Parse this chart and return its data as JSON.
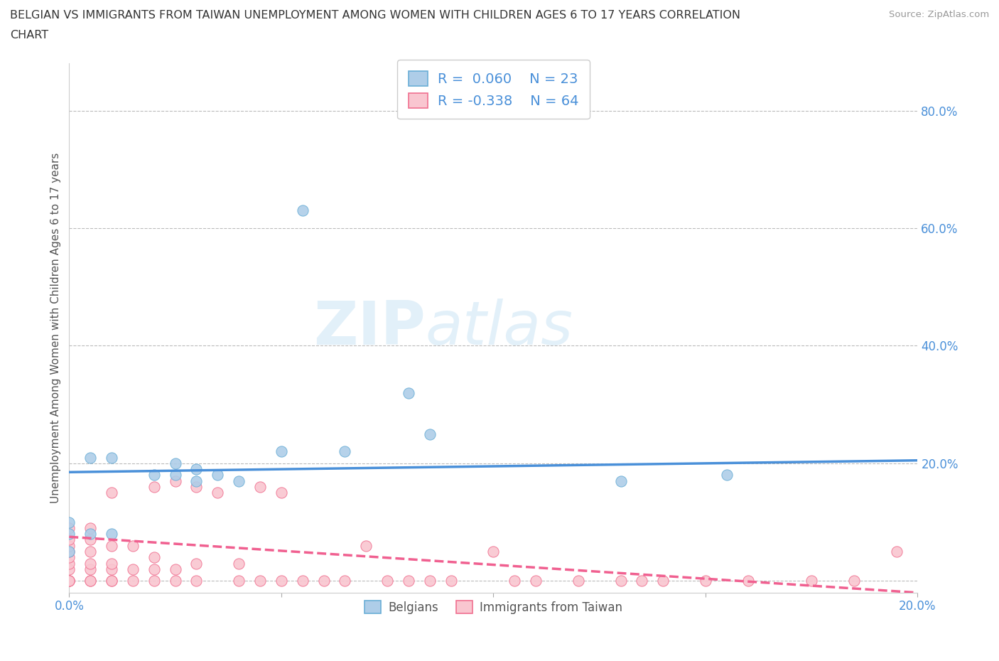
{
  "title_line1": "BELGIAN VS IMMIGRANTS FROM TAIWAN UNEMPLOYMENT AMONG WOMEN WITH CHILDREN AGES 6 TO 17 YEARS CORRELATION",
  "title_line2": "CHART",
  "source": "Source: ZipAtlas.com",
  "ylabel": "Unemployment Among Women with Children Ages 6 to 17 years",
  "xlim": [
    0.0,
    0.2
  ],
  "ylim": [
    -0.02,
    0.88
  ],
  "yticks": [
    0.0,
    0.2,
    0.4,
    0.6,
    0.8
  ],
  "ytick_labels": [
    "",
    "20.0%",
    "40.0%",
    "60.0%",
    "80.0%"
  ],
  "xticks": [
    0.0,
    0.05,
    0.1,
    0.15,
    0.2
  ],
  "xtick_labels": [
    "0.0%",
    "",
    "",
    "",
    "20.0%"
  ],
  "grid_color": "#bbbbbb",
  "background_color": "#ffffff",
  "belgian_color": "#aecde8",
  "belgian_edge_color": "#6aaed6",
  "taiwan_color": "#f9c6d0",
  "taiwan_edge_color": "#f07090",
  "trend_belgian_color": "#4a90d9",
  "trend_taiwan_color": "#f06090",
  "legend_label_belgian": "Belgians",
  "legend_label_taiwan": "Immigrants from Taiwan",
  "watermark_zip": "ZIP",
  "watermark_atlas": "atlas",
  "belgians_x": [
    0.0,
    0.0,
    0.0,
    0.005,
    0.005,
    0.01,
    0.01,
    0.02,
    0.025,
    0.025,
    0.03,
    0.03,
    0.035,
    0.04,
    0.05,
    0.055,
    0.065,
    0.08,
    0.085,
    0.13,
    0.155
  ],
  "belgians_y": [
    0.05,
    0.08,
    0.1,
    0.08,
    0.21,
    0.08,
    0.21,
    0.18,
    0.18,
    0.2,
    0.17,
    0.19,
    0.18,
    0.17,
    0.22,
    0.63,
    0.22,
    0.32,
    0.25,
    0.17,
    0.18
  ],
  "taiwan_x": [
    0.0,
    0.0,
    0.0,
    0.0,
    0.0,
    0.0,
    0.0,
    0.0,
    0.0,
    0.0,
    0.0,
    0.005,
    0.005,
    0.005,
    0.005,
    0.005,
    0.005,
    0.005,
    0.01,
    0.01,
    0.01,
    0.01,
    0.01,
    0.01,
    0.015,
    0.015,
    0.015,
    0.02,
    0.02,
    0.02,
    0.02,
    0.025,
    0.025,
    0.025,
    0.03,
    0.03,
    0.03,
    0.035,
    0.04,
    0.04,
    0.045,
    0.045,
    0.05,
    0.05,
    0.055,
    0.06,
    0.065,
    0.07,
    0.075,
    0.08,
    0.085,
    0.09,
    0.1,
    0.105,
    0.11,
    0.12,
    0.13,
    0.135,
    0.14,
    0.15,
    0.16,
    0.175,
    0.185,
    0.195
  ],
  "taiwan_y": [
    0.0,
    0.0,
    0.0,
    0.0,
    0.02,
    0.03,
    0.04,
    0.05,
    0.06,
    0.07,
    0.09,
    0.0,
    0.0,
    0.02,
    0.03,
    0.05,
    0.07,
    0.09,
    0.0,
    0.0,
    0.02,
    0.03,
    0.06,
    0.15,
    0.0,
    0.02,
    0.06,
    0.0,
    0.02,
    0.04,
    0.16,
    0.0,
    0.02,
    0.17,
    0.0,
    0.03,
    0.16,
    0.15,
    0.0,
    0.03,
    0.0,
    0.16,
    0.0,
    0.15,
    0.0,
    0.0,
    0.0,
    0.06,
    0.0,
    0.0,
    0.0,
    0.0,
    0.05,
    0.0,
    0.0,
    0.0,
    0.0,
    0.0,
    0.0,
    0.0,
    0.0,
    0.0,
    0.0,
    0.05
  ],
  "bel_trend_x0": 0.0,
  "bel_trend_y0": 0.185,
  "bel_trend_x1": 0.2,
  "bel_trend_y1": 0.205,
  "tai_trend_x0": 0.0,
  "tai_trend_y0": 0.075,
  "tai_trend_x1": 0.2,
  "tai_trend_y1": -0.02
}
